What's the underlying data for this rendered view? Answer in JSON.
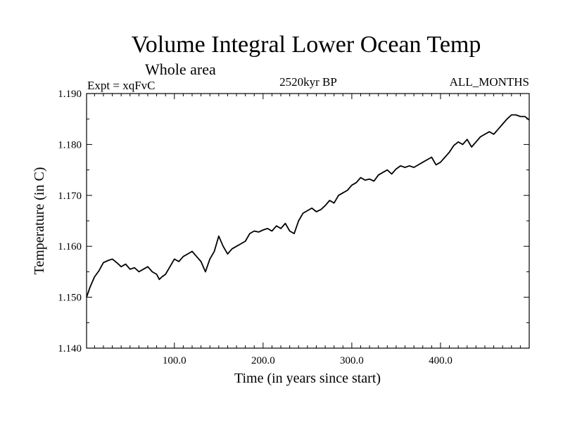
{
  "chart_data": {
    "type": "line",
    "title": "Volume Integral Lower Ocean Temp",
    "subtitle": "Whole area",
    "left_label": "Expt = xqFvC",
    "center_label": "2520kyr BP",
    "right_label": "ALL_MONTHS",
    "xlabel": "Time (in years since start)",
    "ylabel": "Temperature (in C)",
    "xlim": [
      1,
      500
    ],
    "ylim": [
      1.14,
      1.19
    ],
    "xticks": [
      100,
      200,
      300,
      400
    ],
    "xtick_labels": [
      "100.0",
      "200.0",
      "300.0",
      "400.0"
    ],
    "yticks": [
      1.14,
      1.15,
      1.16,
      1.17,
      1.18,
      1.19
    ],
    "ytick_labels": [
      "1.140",
      "1.150",
      "1.160",
      "1.170",
      "1.180",
      "1.190"
    ],
    "grid": false,
    "series": [
      {
        "name": "Temperature",
        "color": "#000000",
        "x": [
          1,
          5,
          10,
          15,
          20,
          25,
          30,
          35,
          40,
          45,
          50,
          55,
          60,
          65,
          70,
          75,
          80,
          83,
          86,
          90,
          95,
          100,
          105,
          110,
          115,
          120,
          125,
          130,
          135,
          140,
          145,
          150,
          155,
          160,
          165,
          170,
          175,
          180,
          185,
          190,
          195,
          200,
          205,
          210,
          215,
          220,
          225,
          230,
          235,
          240,
          245,
          250,
          255,
          260,
          265,
          270,
          275,
          280,
          285,
          290,
          295,
          300,
          305,
          310,
          315,
          320,
          325,
          330,
          335,
          340,
          345,
          350,
          355,
          360,
          365,
          370,
          375,
          380,
          385,
          390,
          395,
          400,
          405,
          410,
          415,
          420,
          425,
          430,
          435,
          440,
          445,
          450,
          455,
          460,
          465,
          470,
          475,
          480,
          485,
          490,
          495,
          500
        ],
        "y": [
          1.15,
          1.152,
          1.154,
          1.1552,
          1.1568,
          1.1572,
          1.1575,
          1.1568,
          1.156,
          1.1565,
          1.1555,
          1.1558,
          1.155,
          1.1555,
          1.156,
          1.155,
          1.1545,
          1.1535,
          1.154,
          1.1545,
          1.156,
          1.1575,
          1.157,
          1.158,
          1.1585,
          1.159,
          1.158,
          1.157,
          1.155,
          1.1575,
          1.159,
          1.162,
          1.16,
          1.1585,
          1.1595,
          1.16,
          1.1605,
          1.161,
          1.1625,
          1.163,
          1.1628,
          1.1632,
          1.1635,
          1.163,
          1.164,
          1.1635,
          1.1645,
          1.163,
          1.1625,
          1.165,
          1.1665,
          1.167,
          1.1675,
          1.1668,
          1.1672,
          1.168,
          1.169,
          1.1685,
          1.17,
          1.1705,
          1.171,
          1.172,
          1.1725,
          1.1735,
          1.173,
          1.1732,
          1.1728,
          1.174,
          1.1745,
          1.175,
          1.1742,
          1.1752,
          1.1758,
          1.1755,
          1.1758,
          1.1755,
          1.176,
          1.1765,
          1.177,
          1.1775,
          1.176,
          1.1765,
          1.1775,
          1.1785,
          1.1798,
          1.1805,
          1.18,
          1.181,
          1.1795,
          1.1805,
          1.1815,
          1.182,
          1.1825,
          1.182,
          1.183,
          1.184,
          1.185,
          1.1858,
          1.1858,
          1.1855,
          1.1855,
          1.1848
        ]
      }
    ]
  }
}
